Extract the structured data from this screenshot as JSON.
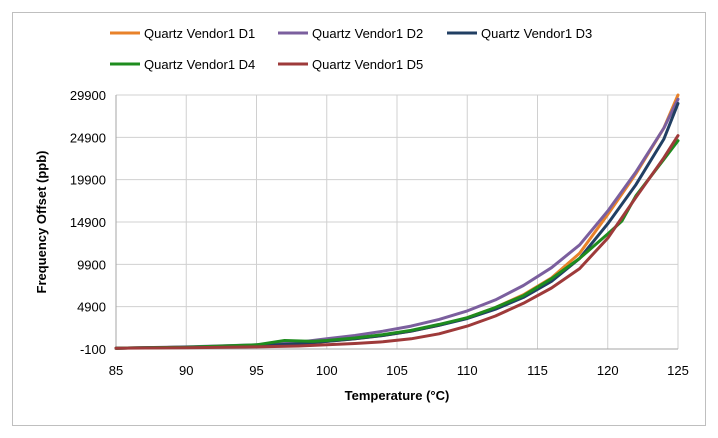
{
  "chart_data": {
    "type": "line",
    "title": "",
    "xlabel": "Temperature (°C)",
    "ylabel": "Frequency Offset (ppb)",
    "xlim": [
      85,
      125
    ],
    "ylim": [
      -100,
      29900
    ],
    "xticks": [
      85,
      90,
      95,
      100,
      105,
      110,
      115,
      120,
      125
    ],
    "yticks": [
      -100,
      4900,
      9900,
      14900,
      19900,
      24900,
      29900
    ],
    "grid": true,
    "legend_position": "top",
    "series": [
      {
        "name": "Quartz Vendor1 D1",
        "color": "#e8822a",
        "points": [
          [
            85,
            0
          ],
          [
            90,
            100
          ],
          [
            95,
            300
          ],
          [
            98,
            500
          ],
          [
            100,
            800
          ],
          [
            102,
            1100
          ],
          [
            104,
            1500
          ],
          [
            106,
            2000
          ],
          [
            108,
            2700
          ],
          [
            110,
            3600
          ],
          [
            112,
            4800
          ],
          [
            114,
            6300
          ],
          [
            116,
            8300
          ],
          [
            118,
            11200
          ],
          [
            120,
            15800
          ],
          [
            122,
            20600
          ],
          [
            124,
            26000
          ],
          [
            125,
            29900
          ]
        ]
      },
      {
        "name": "Quartz Vendor1 D2",
        "color": "#7b5f9e",
        "points": [
          [
            85,
            0
          ],
          [
            90,
            150
          ],
          [
            95,
            400
          ],
          [
            98,
            700
          ],
          [
            100,
            1100
          ],
          [
            102,
            1500
          ],
          [
            104,
            2000
          ],
          [
            106,
            2600
          ],
          [
            108,
            3400
          ],
          [
            110,
            4400
          ],
          [
            112,
            5700
          ],
          [
            114,
            7400
          ],
          [
            116,
            9500
          ],
          [
            118,
            12200
          ],
          [
            120,
            16200
          ],
          [
            122,
            20800
          ],
          [
            124,
            26000
          ],
          [
            125,
            29400
          ]
        ]
      },
      {
        "name": "Quartz Vendor1 D3",
        "color": "#213f63",
        "points": [
          [
            85,
            0
          ],
          [
            90,
            100
          ],
          [
            95,
            300
          ],
          [
            98,
            500
          ],
          [
            100,
            800
          ],
          [
            102,
            1100
          ],
          [
            104,
            1500
          ],
          [
            106,
            2000
          ],
          [
            108,
            2700
          ],
          [
            110,
            3500
          ],
          [
            112,
            4600
          ],
          [
            114,
            6000
          ],
          [
            116,
            7900
          ],
          [
            118,
            10600
          ],
          [
            120,
            14700
          ],
          [
            122,
            19300
          ],
          [
            124,
            24700
          ],
          [
            125,
            28900
          ]
        ]
      },
      {
        "name": "Quartz Vendor1 D4",
        "color": "#1e8c1e",
        "points": [
          [
            85,
            0
          ],
          [
            90,
            100
          ],
          [
            95,
            400
          ],
          [
            97,
            900
          ],
          [
            99,
            800
          ],
          [
            100,
            900
          ],
          [
            102,
            1200
          ],
          [
            104,
            1600
          ],
          [
            106,
            2100
          ],
          [
            108,
            2800
          ],
          [
            110,
            3600
          ],
          [
            112,
            4800
          ],
          [
            114,
            6200
          ],
          [
            116,
            8200
          ],
          [
            118,
            10600
          ],
          [
            120,
            13500
          ],
          [
            121,
            15000
          ],
          [
            122,
            18000
          ],
          [
            124,
            22300
          ],
          [
            125,
            24500
          ]
        ]
      },
      {
        "name": "Quartz Vendor1 D5",
        "color": "#9e3a3a",
        "points": [
          [
            85,
            0
          ],
          [
            90,
            50
          ],
          [
            95,
            150
          ],
          [
            98,
            250
          ],
          [
            100,
            400
          ],
          [
            102,
            550
          ],
          [
            104,
            750
          ],
          [
            106,
            1100
          ],
          [
            108,
            1700
          ],
          [
            110,
            2600
          ],
          [
            112,
            3800
          ],
          [
            114,
            5300
          ],
          [
            116,
            7100
          ],
          [
            118,
            9400
          ],
          [
            120,
            13000
          ],
          [
            122,
            17800
          ],
          [
            124,
            22500
          ],
          [
            125,
            25100
          ]
        ]
      }
    ]
  }
}
